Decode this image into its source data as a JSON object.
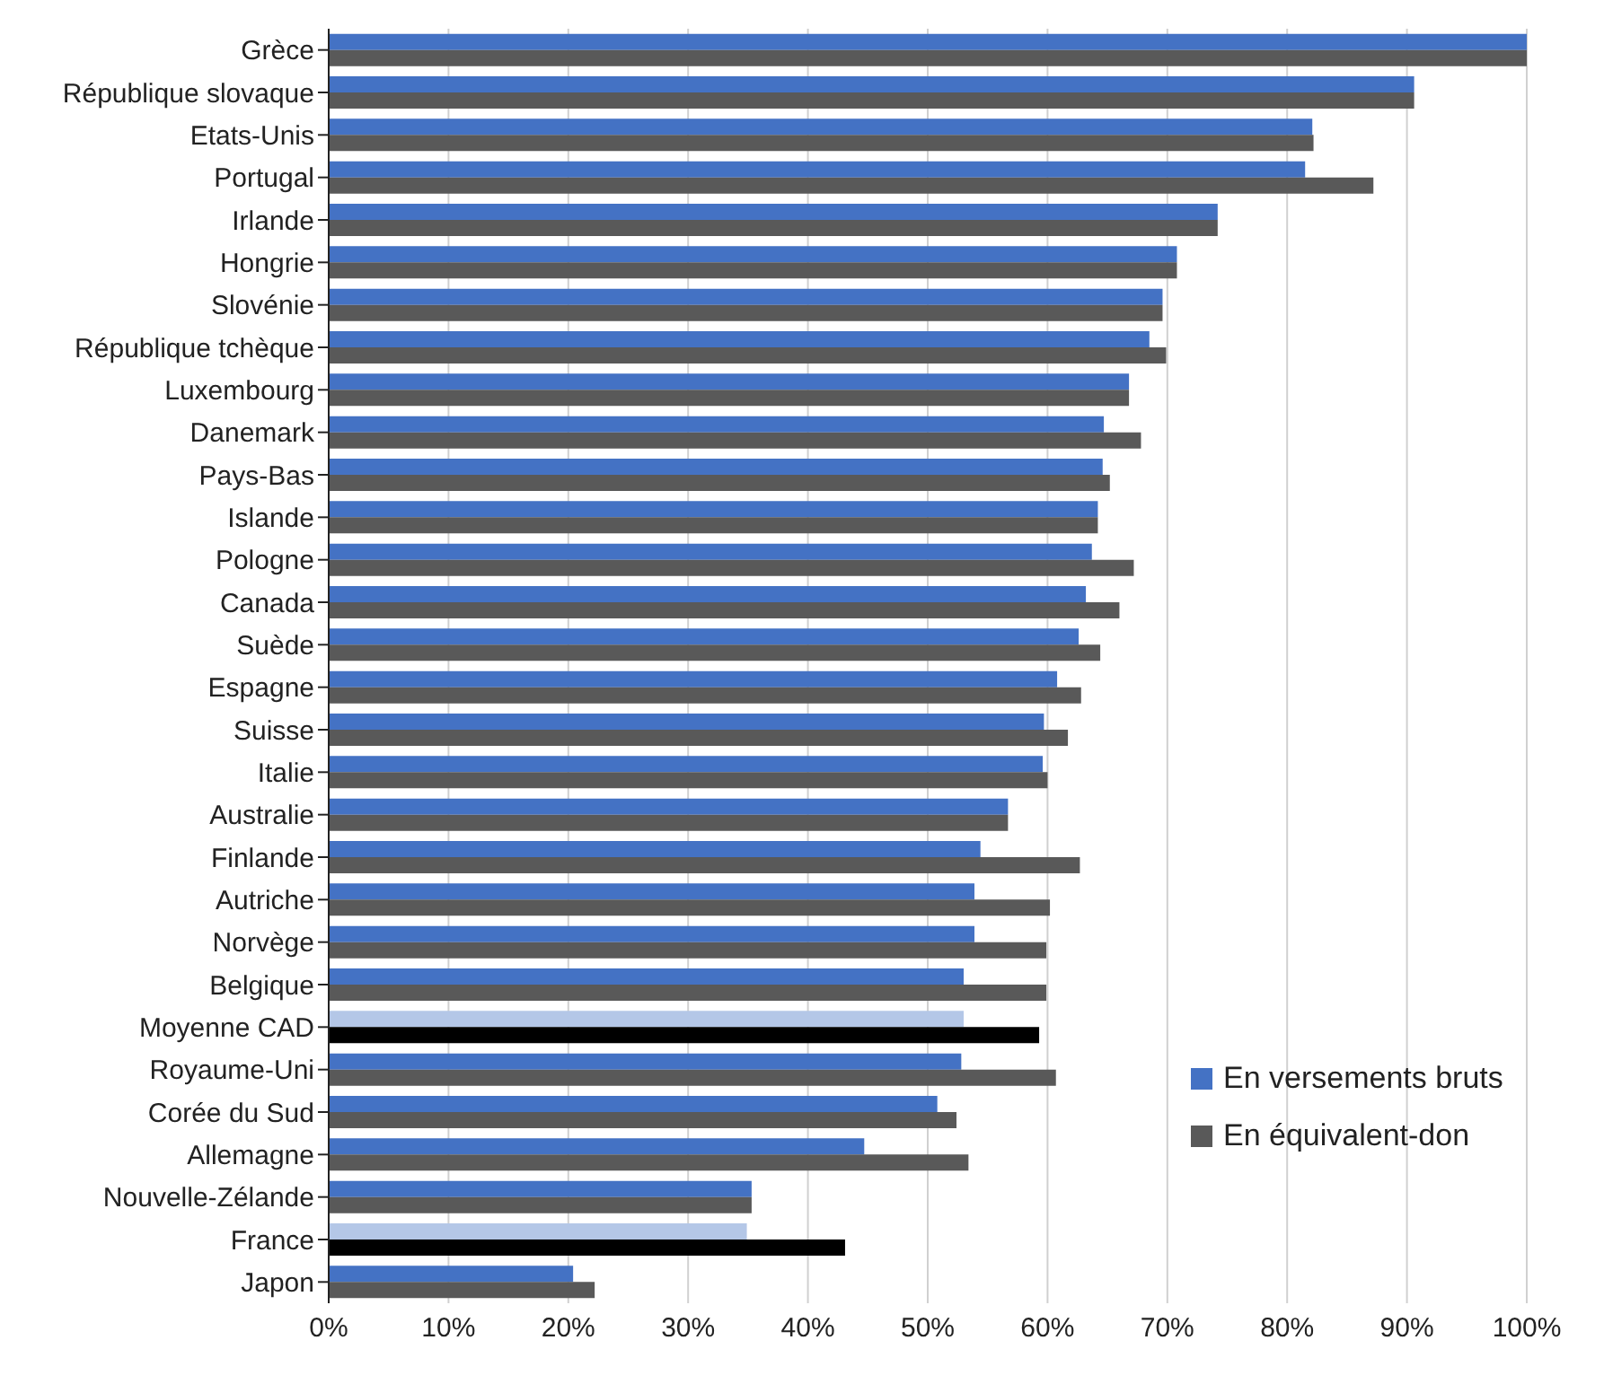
{
  "chart_data": {
    "type": "bar",
    "orientation": "horizontal",
    "categories": [
      "Grèce",
      "République slovaque",
      "Etats-Unis",
      "Portugal",
      "Irlande",
      "Hongrie",
      "Slovénie",
      "République tchèque",
      "Luxembourg",
      "Danemark",
      "Pays-Bas",
      "Islande",
      "Pologne",
      "Canada",
      "Suède",
      "Espagne",
      "Suisse",
      "Italie",
      "Australie",
      "Finlande",
      "Autriche",
      "Norvège",
      "Belgique",
      "Moyenne CAD",
      "Royaume-Uni",
      "Corée du Sud",
      "Allemagne",
      "Nouvelle-Zélande",
      "France",
      "Japon"
    ],
    "series": [
      {
        "name": "En versements bruts",
        "color": "#4472c4",
        "colors": [
          "#4472c4",
          "#4472c4",
          "#4472c4",
          "#4472c4",
          "#4472c4",
          "#4472c4",
          "#4472c4",
          "#4472c4",
          "#4472c4",
          "#4472c4",
          "#4472c4",
          "#4472c4",
          "#4472c4",
          "#4472c4",
          "#4472c4",
          "#4472c4",
          "#4472c4",
          "#4472c4",
          "#4472c4",
          "#4472c4",
          "#4472c4",
          "#4472c4",
          "#4472c4",
          "#b4c7e7",
          "#4472c4",
          "#4472c4",
          "#4472c4",
          "#4472c4",
          "#b4c7e7",
          "#4472c4"
        ],
        "values": [
          100,
          90.6,
          82.1,
          81.5,
          74.2,
          70.8,
          69.6,
          68.5,
          66.8,
          64.7,
          64.6,
          64.2,
          63.7,
          63.2,
          62.6,
          60.8,
          59.7,
          59.6,
          56.7,
          54.4,
          53.9,
          53.9,
          53.0,
          53.0,
          52.8,
          50.8,
          44.7,
          35.3,
          34.9,
          20.4
        ]
      },
      {
        "name": "En équivalent-don",
        "color": "#595959",
        "colors": [
          "#595959",
          "#595959",
          "#595959",
          "#595959",
          "#595959",
          "#595959",
          "#595959",
          "#595959",
          "#595959",
          "#595959",
          "#595959",
          "#595959",
          "#595959",
          "#595959",
          "#595959",
          "#595959",
          "#595959",
          "#595959",
          "#595959",
          "#595959",
          "#595959",
          "#595959",
          "#595959",
          "#000000",
          "#595959",
          "#595959",
          "#595959",
          "#595959",
          "#000000",
          "#595959"
        ],
        "values": [
          100,
          90.6,
          82.2,
          87.2,
          74.2,
          70.8,
          69.6,
          69.9,
          66.8,
          67.8,
          65.2,
          64.2,
          67.2,
          66.0,
          64.4,
          62.8,
          61.7,
          60.0,
          56.7,
          62.7,
          60.2,
          59.9,
          59.9,
          59.3,
          60.7,
          52.4,
          53.4,
          35.3,
          43.1,
          22.2
        ]
      }
    ],
    "xlim": [
      0,
      100
    ],
    "xticks": [
      {
        "value": 0,
        "label": "0%"
      },
      {
        "value": 10,
        "label": "10%"
      },
      {
        "value": 20,
        "label": "20%"
      },
      {
        "value": 30,
        "label": "30%"
      },
      {
        "value": 40,
        "label": "40%"
      },
      {
        "value": 50,
        "label": "50%"
      },
      {
        "value": 60,
        "label": "60%"
      },
      {
        "value": 70,
        "label": "70%"
      },
      {
        "value": 80,
        "label": "80%"
      },
      {
        "value": 90,
        "label": "90%"
      },
      {
        "value": 100,
        "label": "100%"
      }
    ],
    "grid": "x",
    "legend": "right"
  }
}
